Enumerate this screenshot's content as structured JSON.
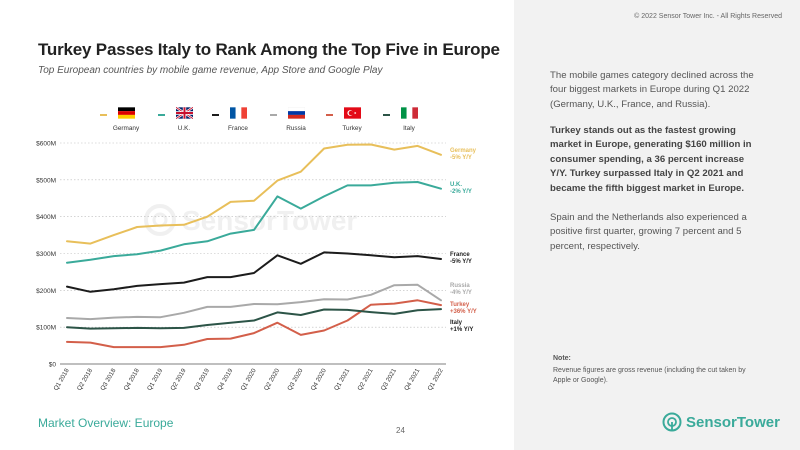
{
  "copyright": "© 2022 Sensor Tower Inc. - All Rights Reserved",
  "title": "Turkey Passes Italy to Rank Among the Top Five in Europe",
  "subtitle": "Top European countries by mobile game revenue, App Store and Google Play",
  "right_panel": {
    "p1": "The mobile games category declined across the four biggest markets in Europe during Q1 2022 (Germany, U.K., France, and Russia).",
    "p2": "Turkey stands out as the fastest growing market in Europe, generating $160 million in consumer spending, a 36 percent increase Y/Y. Turkey surpassed Italy in Q2 2021 and became the fifth biggest market in Europe.",
    "p3": "Spain and the Netherlands also experienced a positive first quarter, growing 7 percent and 5 percent, respectively.",
    "note_title": "Note:",
    "note_text": "Revenue figures are gross revenue (including the cut taken by Apple or Google)."
  },
  "footer": {
    "section": "Market Overview: Europe",
    "page": "24",
    "brand": "SensorTower"
  },
  "watermark": "SensorTower",
  "chart_data": {
    "type": "line",
    "categories": [
      "Q1 2018",
      "Q2 2018",
      "Q3 2018",
      "Q4 2018",
      "Q1 2019",
      "Q2 2019",
      "Q3 2019",
      "Q4 2019",
      "Q1 2020",
      "Q2 2020",
      "Q3 2020",
      "Q4 2020",
      "Q1 2021",
      "Q2 2021",
      "Q3 2021",
      "Q4 2021",
      "Q1 2022"
    ],
    "y_ticks": [
      "$0",
      "$100M",
      "$200M",
      "$300M",
      "$400M",
      "$500M",
      "$600M"
    ],
    "ylim": [
      0,
      600
    ],
    "grid": true,
    "legend_position": "top",
    "series": [
      {
        "name": "Germany",
        "color": "#e8bf5a",
        "flag": "germany",
        "values": [
          333,
          327,
          350,
          372,
          376,
          378,
          400,
          440,
          443,
          498,
          522,
          585,
          595,
          596,
          582,
          592,
          568
        ],
        "end_label": "Germany",
        "end_growth": "-5% Y/Y"
      },
      {
        "name": "U.K.",
        "color": "#3aaa9a",
        "flag": "uk",
        "values": [
          275,
          283,
          293,
          298,
          308,
          325,
          333,
          354,
          364,
          455,
          422,
          455,
          485,
          485,
          492,
          494,
          476
        ],
        "end_label": "U.K.",
        "end_growth": "-2% Y/Y"
      },
      {
        "name": "France",
        "color": "#1c1c1c",
        "flag": "france",
        "values": [
          210,
          196,
          203,
          212,
          217,
          221,
          236,
          236,
          247,
          295,
          272,
          303,
          300,
          295,
          290,
          293,
          285
        ],
        "end_label": "France",
        "end_growth": "-5% Y/Y"
      },
      {
        "name": "Russia",
        "color": "#a9a9a9",
        "flag": "russia",
        "values": [
          125,
          122,
          126,
          128,
          127,
          139,
          155,
          155,
          163,
          162,
          168,
          176,
          175,
          188,
          214,
          215,
          173
        ],
        "end_label": "Russia",
        "end_growth": "-4% Y/Y"
      },
      {
        "name": "Turkey",
        "color": "#d35f4a",
        "flag": "turkey",
        "values": [
          60,
          58,
          46,
          46,
          46,
          52,
          68,
          69,
          84,
          112,
          79,
          91,
          118,
          161,
          164,
          173,
          160
        ],
        "end_label": "Turkey",
        "end_growth": "+36% Y/Y"
      },
      {
        "name": "Italy",
        "color": "#2c5447",
        "flag": "italy",
        "values": [
          100,
          96,
          97,
          98,
          97,
          98,
          106,
          112,
          118,
          140,
          133,
          148,
          147,
          141,
          136,
          146,
          149
        ],
        "end_label": "Italy",
        "end_growth": "+1% Y/Y"
      }
    ]
  }
}
